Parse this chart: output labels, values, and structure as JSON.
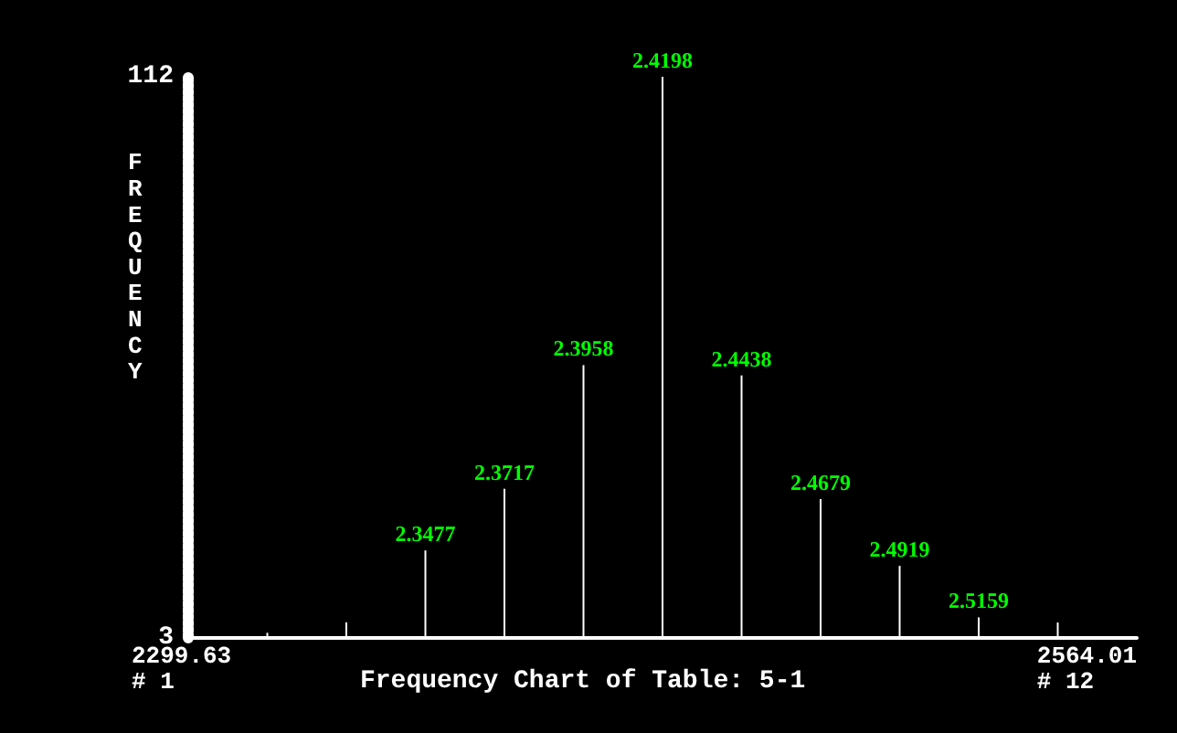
{
  "chart_data": {
    "type": "bar",
    "title": "Frequency Chart of Table: 5-1",
    "ylabel": "FREQUENCY",
    "categories": [
      null,
      null,
      null,
      "2.3477",
      "2.3717",
      "2.3958",
      "2.4198",
      "2.4438",
      "2.4679",
      "2.4919",
      "2.5159",
      null,
      null
    ],
    "series": [
      {
        "color": "#ffffff",
        "values": [
          null,
          4,
          6,
          20,
          32,
          56,
          112,
          54,
          30,
          17,
          7,
          6,
          null
        ]
      }
    ],
    "annotations": [
      "2299.63\n# 1",
      "2564.01\n# 12"
    ],
    "ylim": [
      3,
      112
    ],
    "yticks": [
      3,
      112
    ],
    "grid": false
  }
}
